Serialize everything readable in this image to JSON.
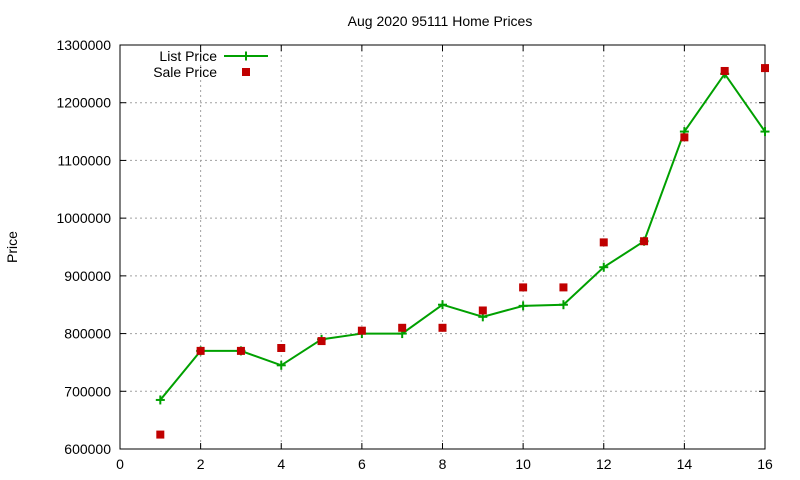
{
  "chart_data": {
    "type": "line",
    "title": "Aug 2020 95111 Home Prices",
    "xlabel": "",
    "ylabel": "Price",
    "xlim": [
      0,
      16
    ],
    "ylim": [
      600000,
      1300000
    ],
    "xticks": [
      0,
      2,
      4,
      6,
      8,
      10,
      12,
      14,
      16
    ],
    "yticks": [
      600000,
      700000,
      800000,
      900000,
      1000000,
      1100000,
      1200000,
      1300000
    ],
    "grid": true,
    "legend_position": "top-left",
    "series": [
      {
        "name": "List Price",
        "style": "line+cross",
        "color": "#00a000",
        "x": [
          1,
          2,
          3,
          4,
          5,
          6,
          7,
          8,
          9,
          10,
          11,
          12,
          13,
          14,
          15,
          16
        ],
        "y": [
          685000,
          770000,
          770000,
          745000,
          790000,
          800000,
          800000,
          850000,
          829000,
          848000,
          850000,
          915000,
          960000,
          1150000,
          1250000,
          1150000
        ]
      },
      {
        "name": "Sale Price",
        "style": "square",
        "color": "#c00000",
        "x": [
          1,
          2,
          3,
          4,
          5,
          6,
          7,
          8,
          9,
          10,
          11,
          12,
          13,
          14,
          15,
          16
        ],
        "y": [
          625000,
          770000,
          770000,
          775000,
          787000,
          805000,
          810000,
          810000,
          840000,
          880000,
          880000,
          958000,
          960000,
          1140000,
          1255000,
          1260000
        ]
      }
    ]
  }
}
